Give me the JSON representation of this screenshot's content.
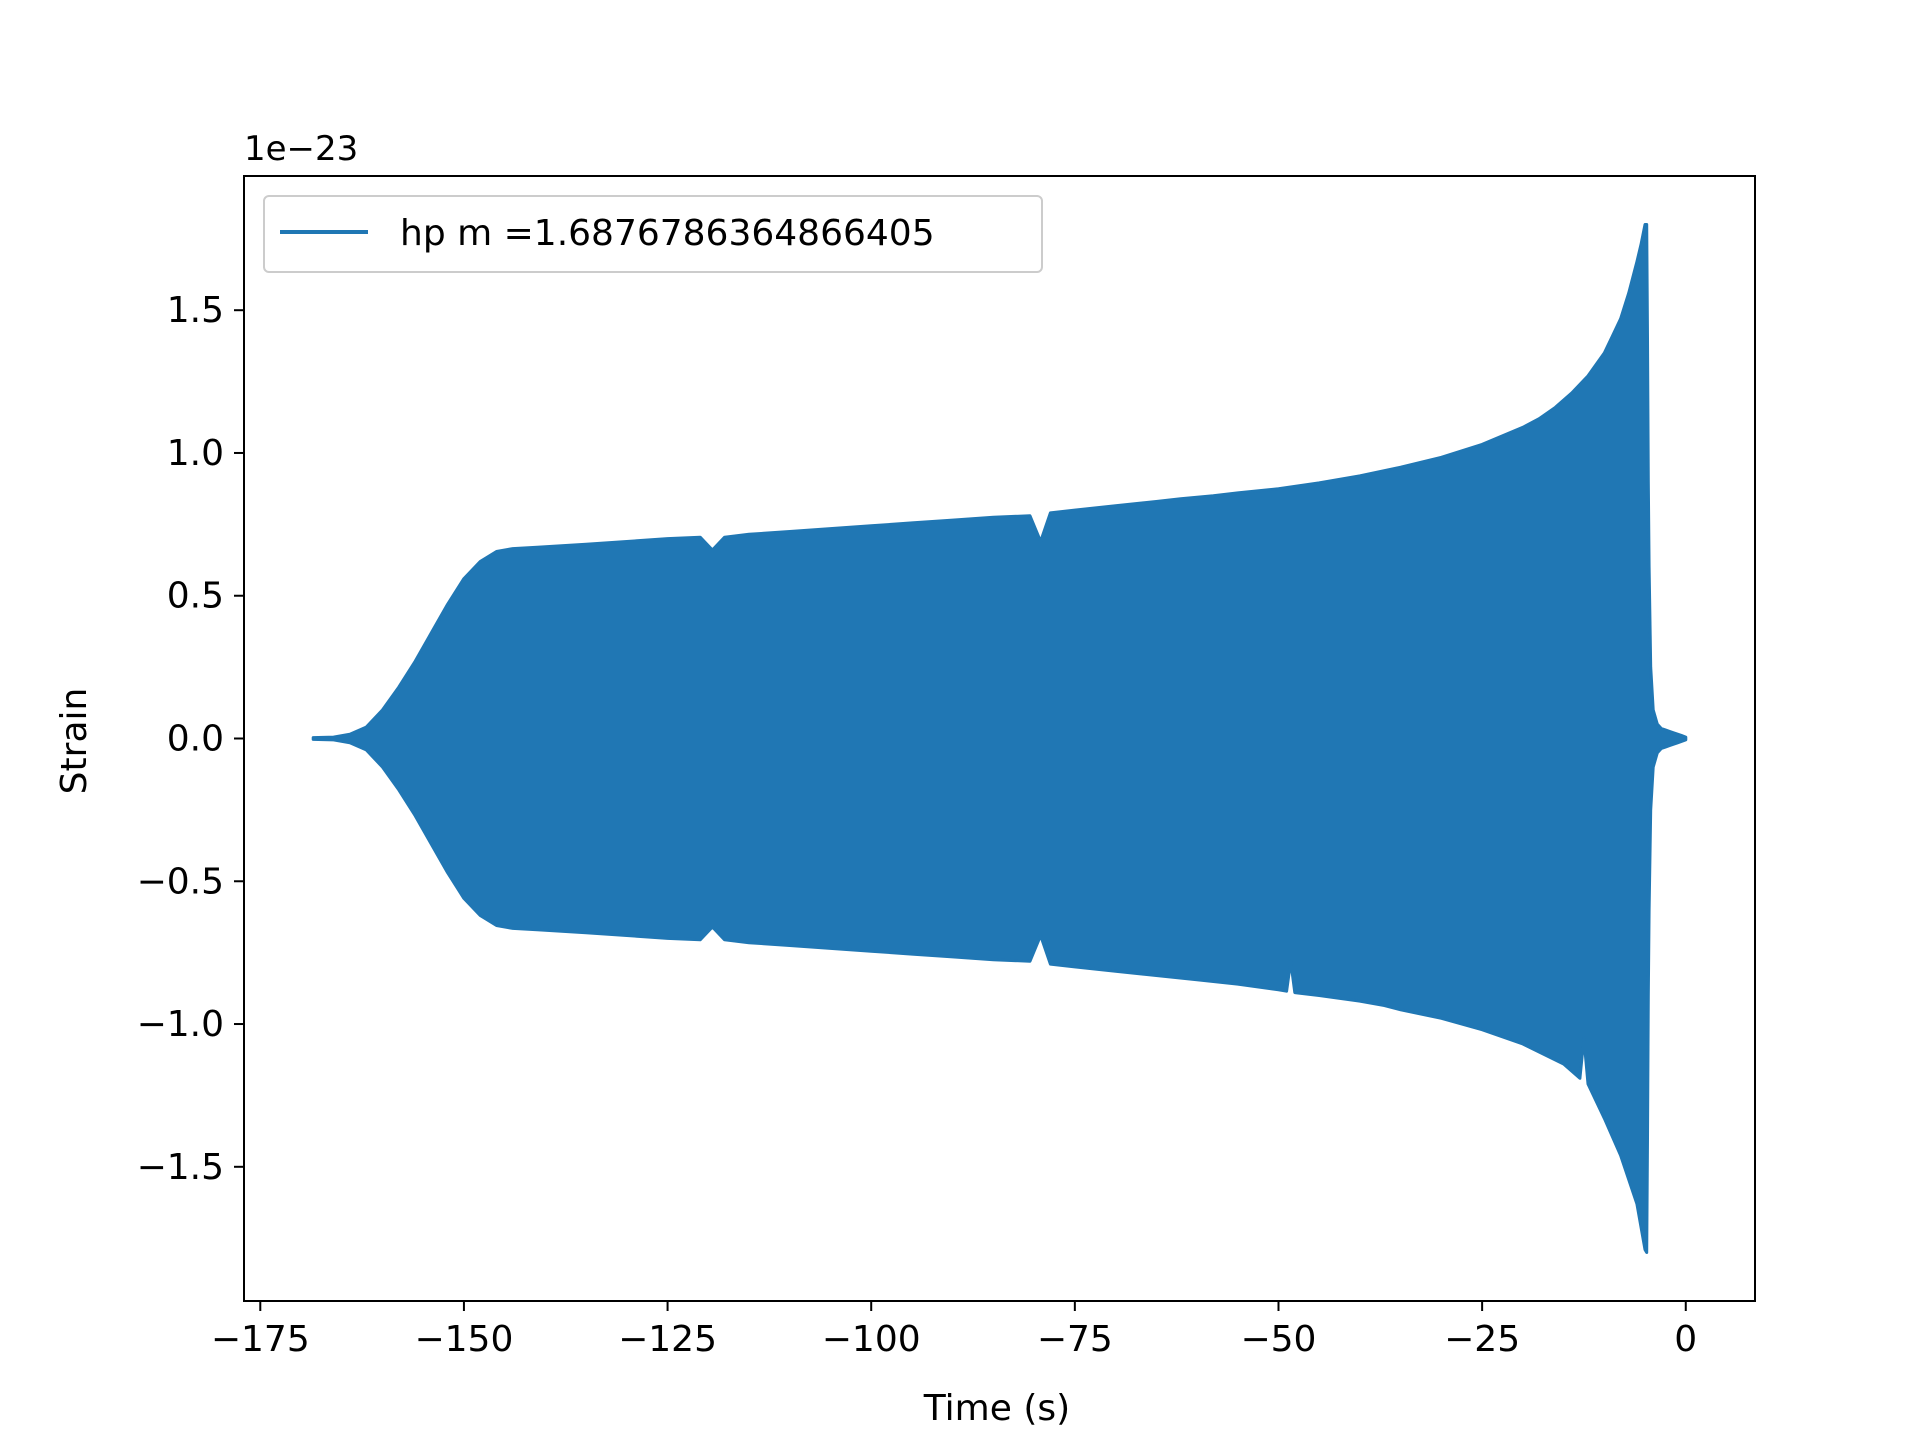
{
  "chart_data": {
    "type": "line",
    "title": "",
    "xlabel": "Time (s)",
    "ylabel": "Strain",
    "offset_text": "1e−23",
    "xlim": [
      -177,
      8.5
    ],
    "ylim": [
      -1.97,
      1.97
    ],
    "xticks": [
      -175,
      -150,
      -125,
      -100,
      -75,
      -50,
      -25,
      0
    ],
    "xtick_labels": [
      "−175",
      "−150",
      "−125",
      "−100",
      "−75",
      "−50",
      "−25",
      "0"
    ],
    "yticks": [
      -1.5,
      -1.0,
      -0.5,
      0.0,
      0.5,
      1.0,
      1.5
    ],
    "ytick_labels": [
      "−1.5",
      "−1.0",
      "−0.5",
      "0.0",
      "0.5",
      "1.0",
      "1.5"
    ],
    "grid": false,
    "legend_position": "upper-left",
    "series": [
      {
        "name": "hp m =1.6876786364866405",
        "color": "#2077b4",
        "envelope_upper": {
          "x": [
            -168.5,
            -166,
            -164,
            -162,
            -160,
            -158,
            -156,
            -154,
            -152,
            -150,
            -148,
            -146,
            -144,
            -141,
            -135,
            -130,
            -125,
            -121,
            -119.5,
            -118,
            -115,
            -110,
            -105,
            -100,
            -95,
            -90,
            -85,
            -80.5,
            -79.2,
            -78,
            -75,
            -70,
            -65,
            -62,
            -58,
            -55,
            -50,
            -45,
            -40,
            -35,
            -30,
            -25,
            -20,
            -18,
            -16,
            -14,
            -12,
            -10,
            -9,
            -8,
            -7,
            -6,
            -5.5,
            -5,
            -4.8,
            -4.7,
            -4.6,
            -4.5,
            -4.3,
            -4.0,
            -3.5,
            -3.0,
            -2.5,
            -2.0,
            -1.5,
            -1.0,
            -0.5,
            0
          ],
          "y": [
            0.003,
            0.005,
            0.015,
            0.04,
            0.1,
            0.18,
            0.27,
            0.37,
            0.47,
            0.56,
            0.62,
            0.655,
            0.665,
            0.67,
            0.68,
            0.69,
            0.7,
            0.705,
            0.66,
            0.705,
            0.715,
            0.725,
            0.735,
            0.745,
            0.755,
            0.765,
            0.775,
            0.78,
            0.69,
            0.79,
            0.8,
            0.815,
            0.83,
            0.84,
            0.85,
            0.86,
            0.875,
            0.895,
            0.92,
            0.95,
            0.985,
            1.03,
            1.09,
            1.12,
            1.16,
            1.21,
            1.27,
            1.35,
            1.41,
            1.47,
            1.56,
            1.67,
            1.73,
            1.8,
            1.8,
            1.4,
            0.9,
            0.6,
            0.25,
            0.1,
            0.05,
            0.035,
            0.03,
            0.025,
            0.02,
            0.015,
            0.01,
            0.005
          ]
        },
        "envelope_lower": {
          "x": [
            -168.5,
            -166,
            -164,
            -162,
            -160,
            -158,
            -156,
            -154,
            -152,
            -150,
            -148,
            -146,
            -144,
            -141,
            -135,
            -130,
            -125,
            -121,
            -119.5,
            -118,
            -115,
            -110,
            -105,
            -100,
            -95,
            -90,
            -85,
            -80.5,
            -79.2,
            -78,
            -75,
            -70,
            -65,
            -60,
            -55,
            -50,
            -49,
            -48.5,
            -48,
            -45,
            -40,
            -37,
            -35,
            -30,
            -25,
            -20,
            -15,
            -13,
            -12.5,
            -12,
            -10,
            -8,
            -6,
            -5,
            -4.8,
            -4.7,
            -4.6,
            -4.5,
            -4.3,
            -4.0,
            -3.5,
            -3.0,
            -2.5,
            -2.0,
            -1.5,
            -1.0,
            -0.5,
            0
          ],
          "y": [
            -0.003,
            -0.005,
            -0.015,
            -0.04,
            -0.1,
            -0.18,
            -0.27,
            -0.37,
            -0.47,
            -0.56,
            -0.62,
            -0.655,
            -0.665,
            -0.67,
            -0.68,
            -0.69,
            -0.7,
            -0.705,
            -0.66,
            -0.705,
            -0.715,
            -0.725,
            -0.735,
            -0.745,
            -0.755,
            -0.765,
            -0.775,
            -0.78,
            -0.69,
            -0.79,
            -0.8,
            -0.815,
            -0.83,
            -0.845,
            -0.86,
            -0.88,
            -0.885,
            -0.78,
            -0.89,
            -0.9,
            -0.92,
            -0.935,
            -0.95,
            -0.98,
            -1.02,
            -1.07,
            -1.14,
            -1.19,
            -1.05,
            -1.21,
            -1.33,
            -1.46,
            -1.63,
            -1.79,
            -1.8,
            -1.4,
            -0.9,
            -0.6,
            -0.25,
            -0.1,
            -0.05,
            -0.035,
            -0.03,
            -0.025,
            -0.02,
            -0.015,
            -0.01,
            -0.005
          ]
        }
      }
    ]
  }
}
